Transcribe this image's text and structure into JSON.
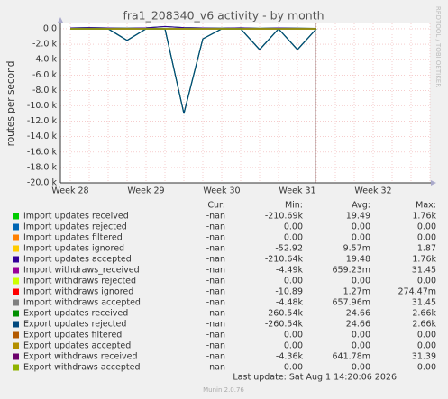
{
  "chart_data": {
    "type": "line",
    "title": "fra1_208340_v6 activity - by month",
    "y_label": "routes per second",
    "side_label": "RRDTOOL / TOBI OETIKER",
    "footer": "Last update: Sat Aug  1 14:20:06 2026",
    "version": "Munin 2.0.76",
    "legend_headers": [
      "Cur:",
      "Min:",
      "Avg:",
      "Max:"
    ],
    "grid": true,
    "categories": [
      "Week 28",
      null,
      null,
      null,
      "Week 29",
      null,
      null,
      null,
      "Week 30",
      null,
      null,
      null,
      "Week 31",
      null,
      null,
      null,
      "Week 32",
      null,
      null,
      null
    ],
    "ylim": [
      -20000,
      700
    ],
    "yticks": [
      {
        "value": 0,
        "label": "0.0"
      },
      {
        "value": -2000,
        "label": "-2.0 k"
      },
      {
        "value": -4000,
        "label": "-4.0 k"
      },
      {
        "value": -6000,
        "label": "-6.0 k"
      },
      {
        "value": -8000,
        "label": "-8.0 k"
      },
      {
        "value": -10000,
        "label": "-10.0 k"
      },
      {
        "value": -12000,
        "label": "-12.0 k"
      },
      {
        "value": -14000,
        "label": "-14.0 k"
      },
      {
        "value": -16000,
        "label": "-16.0 k"
      },
      {
        "value": -18000,
        "label": "-18.0 k"
      },
      {
        "value": -20000,
        "label": "-20.0 k"
      }
    ],
    "series": [
      {
        "name": "Import updates received",
        "color": "#00cc00",
        "cur": "-nan",
        "min": "-210.69k",
        "avg": "19.49",
        "max": "1.76k",
        "values": [
          100,
          150,
          100,
          80,
          120,
          300,
          150,
          100,
          80,
          120,
          60,
          100,
          80,
          50,
          null,
          null,
          null,
          null,
          null,
          null
        ]
      },
      {
        "name": "Import updates rejected",
        "color": "#0066b3",
        "cur": "-nan",
        "min": "0.00",
        "avg": "0.00",
        "max": "0.00",
        "values": [
          0,
          0,
          0,
          0,
          0,
          0,
          0,
          0,
          0,
          0,
          0,
          0,
          0,
          0,
          null,
          null,
          null,
          null,
          null,
          null
        ]
      },
      {
        "name": "Import updates filtered",
        "color": "#ff8000",
        "cur": "-nan",
        "min": "0.00",
        "avg": "0.00",
        "max": "0.00",
        "values": [
          0,
          0,
          0,
          0,
          0,
          0,
          0,
          0,
          0,
          0,
          0,
          0,
          0,
          0,
          null,
          null,
          null,
          null,
          null,
          null
        ]
      },
      {
        "name": "Import updates ignored",
        "color": "#ffcc00",
        "cur": "-nan",
        "min": "-52.92",
        "avg": "9.57m",
        "max": "1.87",
        "values": [
          0,
          0,
          0,
          0,
          0,
          0,
          0,
          0,
          0,
          0,
          0,
          0,
          0,
          0,
          null,
          null,
          null,
          null,
          null,
          null
        ]
      },
      {
        "name": "Import updates accepted",
        "color": "#330099",
        "cur": "-nan",
        "min": "-210.64k",
        "avg": "19.48",
        "max": "1.76k",
        "values": [
          100,
          150,
          100,
          80,
          120,
          300,
          150,
          100,
          80,
          120,
          60,
          100,
          80,
          50,
          null,
          null,
          null,
          null,
          null,
          null
        ]
      },
      {
        "name": "Import withdraws_received",
        "color": "#990099",
        "cur": "-nan",
        "min": "-4.49k",
        "avg": "659.23m",
        "max": "31.45",
        "values": [
          0,
          0,
          0,
          0,
          0,
          0,
          0,
          0,
          0,
          0,
          0,
          0,
          0,
          0,
          null,
          null,
          null,
          null,
          null,
          null
        ]
      },
      {
        "name": "Import withdraws rejected",
        "color": "#ccff00",
        "cur": "-nan",
        "min": "0.00",
        "avg": "0.00",
        "max": "0.00",
        "values": [
          0,
          0,
          0,
          0,
          0,
          0,
          0,
          0,
          0,
          0,
          0,
          0,
          0,
          0,
          null,
          null,
          null,
          null,
          null,
          null
        ]
      },
      {
        "name": "Import withdraws ignored",
        "color": "#ff0000",
        "cur": "-nan",
        "min": "-10.89",
        "avg": "1.27m",
        "max": "274.47m",
        "values": [
          0,
          0,
          0,
          0,
          0,
          0,
          0,
          0,
          0,
          0,
          0,
          0,
          0,
          0,
          null,
          null,
          null,
          null,
          null,
          null
        ]
      },
      {
        "name": "Import withdraws accepted",
        "color": "#808080",
        "cur": "-nan",
        "min": "-4.48k",
        "avg": "657.96m",
        "max": "31.45",
        "values": [
          0,
          0,
          0,
          0,
          0,
          0,
          0,
          0,
          0,
          0,
          0,
          0,
          0,
          0,
          null,
          null,
          null,
          null,
          null,
          null
        ]
      },
      {
        "name": "Export updates received",
        "color": "#008f00",
        "cur": "-nan",
        "min": "-260.54k",
        "avg": "24.66",
        "max": "2.66k",
        "values": [
          0,
          0,
          0,
          -1500,
          0,
          0,
          -11000,
          -1300,
          0,
          0,
          -2700,
          0,
          -2700,
          0,
          null,
          null,
          null,
          null,
          null,
          null
        ]
      },
      {
        "name": "Export updates rejected",
        "color": "#00487d",
        "cur": "-nan",
        "min": "-260.54k",
        "avg": "24.66",
        "max": "2.66k",
        "values": [
          0,
          0,
          0,
          -1500,
          0,
          0,
          -11000,
          -1300,
          0,
          0,
          -2700,
          0,
          -2700,
          0,
          null,
          null,
          null,
          null,
          null,
          null
        ]
      },
      {
        "name": "Export updates filtered",
        "color": "#b35a00",
        "cur": "-nan",
        "min": "0.00",
        "avg": "0.00",
        "max": "0.00",
        "values": [
          0,
          0,
          0,
          0,
          0,
          0,
          0,
          0,
          0,
          0,
          0,
          0,
          0,
          0,
          null,
          null,
          null,
          null,
          null,
          null
        ]
      },
      {
        "name": "Export updates accepted",
        "color": "#b38f00",
        "cur": "-nan",
        "min": "0.00",
        "avg": "0.00",
        "max": "0.00",
        "values": [
          0,
          0,
          0,
          0,
          0,
          0,
          0,
          0,
          0,
          0,
          0,
          0,
          0,
          0,
          null,
          null,
          null,
          null,
          null,
          null
        ]
      },
      {
        "name": "Export withdraws received",
        "color": "#6b006b",
        "cur": "-nan",
        "min": "-4.36k",
        "avg": "641.78m",
        "max": "31.39",
        "values": [
          0,
          0,
          0,
          0,
          0,
          0,
          0,
          0,
          0,
          0,
          0,
          0,
          0,
          0,
          null,
          null,
          null,
          null,
          null,
          null
        ]
      },
      {
        "name": "Export withdraws accepted",
        "color": "#8fb300",
        "cur": "-nan",
        "min": "0.00",
        "avg": "0.00",
        "max": "0.00",
        "values": [
          0,
          0,
          0,
          0,
          0,
          0,
          0,
          0,
          0,
          0,
          0,
          0,
          0,
          0,
          null,
          null,
          null,
          null,
          null,
          null
        ]
      }
    ]
  }
}
